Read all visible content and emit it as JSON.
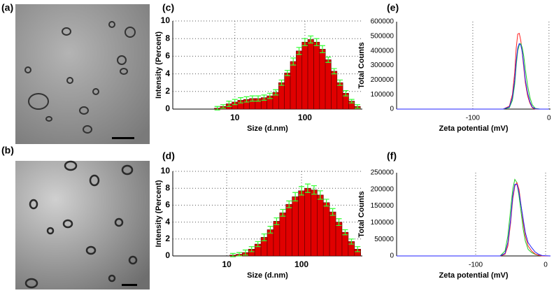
{
  "images": [
    {
      "label": "(a)"
    },
    {
      "label": "(b)"
    }
  ],
  "chart_data": [
    {
      "type": "bar",
      "label": "(c)",
      "xlabel": "Size (d.nm)",
      "ylabel": "Intensity (Percent)",
      "xlog": true,
      "xlim": [
        1.3,
        660
      ],
      "xticks": [
        10,
        100
      ],
      "ylim": [
        0,
        10
      ],
      "yticks": [
        0,
        2,
        4,
        6,
        8,
        10
      ],
      "grid": "both",
      "color": "#e00000",
      "error_color": "#33ff33",
      "x": [
        5.62,
        6.81,
        8.25,
        10,
        12.1,
        14.7,
        17.8,
        21.5,
        26.1,
        31.6,
        38.3,
        46.4,
        56.2,
        68.1,
        82.5,
        100,
        121,
        147,
        178,
        215,
        261,
        316,
        383,
        464,
        562
      ],
      "values": [
        0.1,
        0.3,
        0.6,
        0.8,
        1.0,
        1.1,
        1.2,
        1.2,
        1.3,
        1.5,
        1.9,
        3.0,
        4.1,
        5.4,
        6.6,
        7.6,
        7.9,
        7.6,
        6.8,
        5.6,
        4.3,
        3.0,
        1.8,
        0.9,
        0.3
      ],
      "errors": [
        0.2,
        0.2,
        0.3,
        0.3,
        0.3,
        0.3,
        0.3,
        0.3,
        0.3,
        0.3,
        0.3,
        0.3,
        0.3,
        0.4,
        0.4,
        0.4,
        0.4,
        0.4,
        0.4,
        0.3,
        0.3,
        0.3,
        0.3,
        0.2,
        0.2
      ]
    },
    {
      "type": "bar",
      "label": "(d)",
      "xlabel": "Size (d.nm)",
      "ylabel": "Intensity (Percent)",
      "xlog": true,
      "xlim": [
        1.9,
        650
      ],
      "xticks": [
        10,
        100
      ],
      "ylim": [
        0,
        10
      ],
      "yticks": [
        0,
        2,
        4,
        6,
        8,
        10
      ],
      "grid": "both",
      "color": "#e00000",
      "error_color": "#33ff33",
      "x": [
        12.1,
        14.7,
        17.8,
        21.5,
        26.1,
        31.6,
        38.3,
        46.4,
        56.2,
        68.1,
        82.5,
        100,
        121,
        147,
        178,
        215,
        261,
        316,
        383,
        464,
        562
      ],
      "values": [
        0.1,
        0.2,
        0.4,
        0.8,
        1.4,
        2.2,
        3.1,
        4.1,
        5.1,
        6.1,
        7.0,
        7.7,
        8.0,
        7.8,
        7.2,
        6.3,
        5.2,
        4.0,
        2.8,
        1.7,
        0.8
      ],
      "errors": [
        0.2,
        0.2,
        0.3,
        0.3,
        0.3,
        0.4,
        0.4,
        0.4,
        0.4,
        0.4,
        0.5,
        0.5,
        0.5,
        0.5,
        0.5,
        0.4,
        0.4,
        0.4,
        0.3,
        0.3,
        0.3
      ]
    },
    {
      "type": "line",
      "label": "(e)",
      "xlabel": "Zeta potential (mV)",
      "ylabel": "Total Counts",
      "xlim": [
        -200,
        2
      ],
      "xticks": [
        -100,
        0
      ],
      "ylim": [
        0,
        600000
      ],
      "yticks": [
        0,
        100000,
        200000,
        300000,
        400000,
        500000,
        600000
      ],
      "grid": "x",
      "x": [
        -200,
        -60,
        -52,
        -48,
        -45,
        -43,
        -41,
        -39,
        -37,
        -35,
        -33,
        -31,
        -28,
        -25,
        -22,
        -18,
        -12,
        0
      ],
      "series": [
        {
          "color": "#ff2020",
          "values": [
            0,
            0,
            20000,
            100000,
            250000,
            420000,
            515000,
            520000,
            470000,
            380000,
            280000,
            180000,
            90000,
            40000,
            10000,
            0,
            0,
            0
          ]
        },
        {
          "color": "#22cc22",
          "values": [
            0,
            0,
            10000,
            60000,
            170000,
            300000,
            400000,
            440000,
            450000,
            420000,
            360000,
            270000,
            160000,
            80000,
            30000,
            5000,
            0,
            0
          ]
        },
        {
          "color": "#2020ff",
          "values": [
            0,
            0,
            15000,
            80000,
            200000,
            330000,
            420000,
            450000,
            440000,
            390000,
            300000,
            200000,
            110000,
            50000,
            15000,
            2000,
            0,
            0
          ]
        }
      ]
    },
    {
      "type": "line",
      "label": "(f)",
      "xlabel": "Zeta potential (mV)",
      "ylabel": "Total Counts",
      "xlim": [
        -213,
        7
      ],
      "xticks": [
        -100,
        0
      ],
      "ylim": [
        0,
        250000
      ],
      "yticks": [
        0,
        50000,
        100000,
        150000,
        200000,
        250000
      ],
      "grid": "x",
      "x": [
        -213,
        -65,
        -58,
        -54,
        -50,
        -47,
        -44,
        -41,
        -38,
        -35,
        -32,
        -29,
        -25,
        -20,
        -15,
        -10,
        -5,
        7
      ],
      "series": [
        {
          "color": "#22cc22",
          "values": [
            0,
            0,
            15000,
            60000,
            140000,
            200000,
            230000,
            220000,
            180000,
            130000,
            80000,
            45000,
            20000,
            10000,
            5000,
            2000,
            0,
            0
          ]
        },
        {
          "color": "#ff2020",
          "values": [
            0,
            0,
            5000,
            30000,
            100000,
            170000,
            210000,
            220000,
            200000,
            150000,
            100000,
            60000,
            30000,
            15000,
            6000,
            2000,
            0,
            0
          ]
        },
        {
          "color": "#2020ff",
          "values": [
            0,
            0,
            8000,
            40000,
            110000,
            180000,
            215000,
            215000,
            190000,
            150000,
            110000,
            70000,
            40000,
            25000,
            12000,
            5000,
            1000,
            0
          ]
        }
      ]
    }
  ]
}
